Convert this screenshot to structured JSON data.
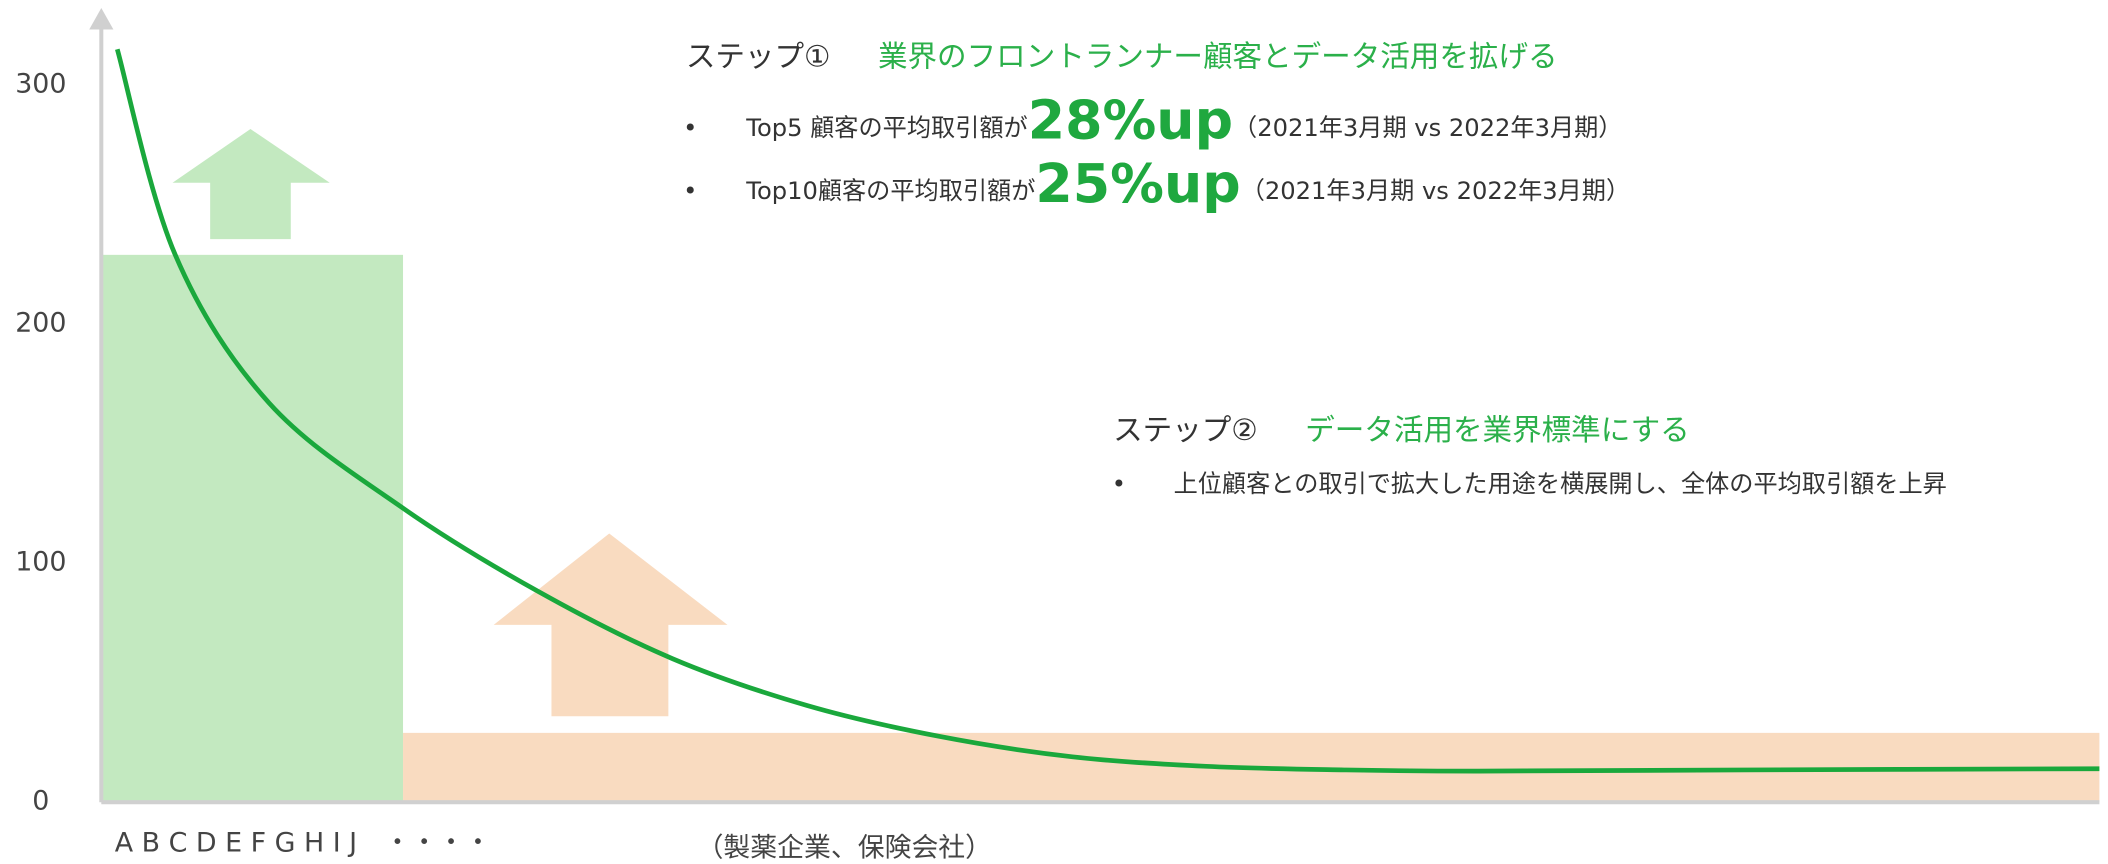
{
  "chart_data": {
    "type": "line",
    "ylim": [
      0,
      330
    ],
    "yticks": [
      0,
      100,
      200,
      300
    ],
    "xlim": [
      0,
      100
    ],
    "series": [
      {
        "color": "#1aa83c",
        "x": [
          0.8,
          3.7,
          8.4,
          15.1,
          21.9,
          28.6,
          35.3,
          41.9,
          48.6,
          55.3,
          62.2,
          68.9,
          82.3,
          100
        ],
        "values": [
          315,
          229,
          167,
          123,
          88,
          60,
          40.5,
          27.6,
          19,
          15,
          13.5,
          13,
          13.5,
          14
        ]
      }
    ],
    "bars": [
      {
        "x": [
          0,
          15.1
        ],
        "value": 229,
        "color": "#c3e9c0"
      },
      {
        "x": [
          15.1,
          100
        ],
        "value": 29,
        "color": "#f9dbc0"
      }
    ],
    "x_labels": [
      "A B C D E F G H I J　・・・・",
      "（製薬企業、保険会社）"
    ],
    "step1": {
      "label": "ステップ①",
      "title": "業界のフロントランナー顧客とデータ活用を拡げる",
      "bullets": [
        {
          "text": "Top5  顧客の平均取引額が",
          "highlight": "28%up",
          "note": "（2021年3月期 vs 2022年3月期）"
        },
        {
          "text": "Top10顧客の平均取引額が",
          "highlight": "25%up",
          "note": "（2021年3月期 vs 2022年3月期）"
        }
      ]
    },
    "step2": {
      "label": "ステップ②",
      "title": "データ活用を業界標準にする",
      "bullets": [
        "上位顧客との取引で拡大した用途を横展開し、全体の平均取引額を上昇"
      ]
    }
  }
}
